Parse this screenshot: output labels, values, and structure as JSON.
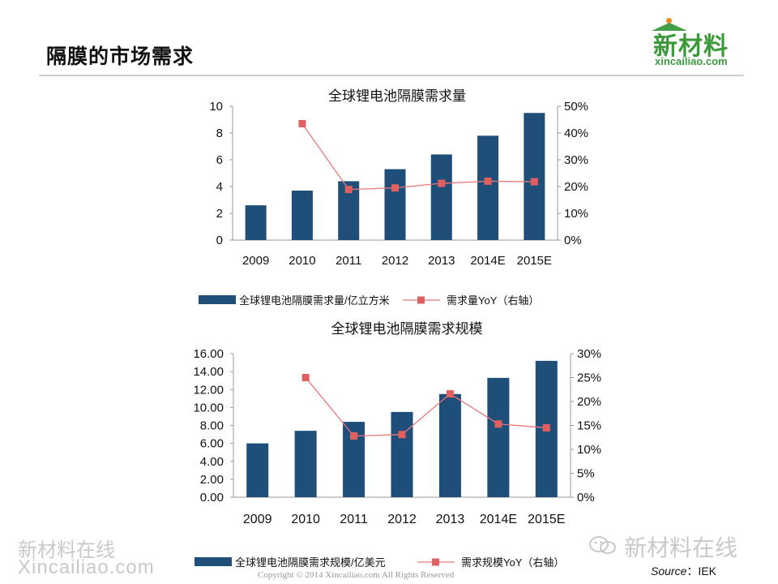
{
  "slide": {
    "title": "隔膜的市场需求",
    "logo_text": "新材料",
    "logo_domain": "xincailiao.com"
  },
  "watermark": {
    "left_line1": "新材料在线",
    "left_line2": "Xincailiao.com",
    "right_text": "新材料在线"
  },
  "footer": {
    "copyright": "Copyright © 2014   Xincailiao.com   All Rights Reserved",
    "source_label": "Source",
    "source_sep": "：",
    "source_value": "IEK"
  },
  "colors": {
    "bar": "#1f4e79",
    "line": "#e8777b",
    "marker": "#e06060",
    "axis": "#9a9a9a",
    "logo_green": "#3a9a3a"
  },
  "chart_data": [
    {
      "type": "bar",
      "title": "全球锂电池隔膜需求量",
      "categories": [
        "2009",
        "2010",
        "2011",
        "2012",
        "2013",
        "2014E",
        "2015E"
      ],
      "series": [
        {
          "name": "全球锂电池隔膜需求量/亿立方米",
          "kind": "bar",
          "axis": "left",
          "values": [
            2.6,
            3.7,
            4.4,
            5.3,
            6.4,
            7.8,
            9.5
          ]
        },
        {
          "name": "需求量YoY（右轴）",
          "kind": "line",
          "axis": "right",
          "values": [
            null,
            43.5,
            18.9,
            19.5,
            21.2,
            22.0,
            21.8
          ]
        }
      ],
      "ylim_left": [
        0,
        10
      ],
      "yticks_left": [
        "10",
        "8",
        "6",
        "4",
        "2",
        "0"
      ],
      "ylim_right": [
        0,
        50
      ],
      "yticks_right": [
        "50%",
        "40%",
        "30%",
        "20%",
        "10%",
        "0%"
      ],
      "legend": [
        "全球锂电池隔膜需求量/亿立方米",
        "需求量YoY（右轴）"
      ],
      "legend_position": "bottom"
    },
    {
      "type": "bar",
      "title": "全球锂电池隔膜需求规模",
      "categories": [
        "2009",
        "2010",
        "2011",
        "2012",
        "2013",
        "2014E",
        "2015E"
      ],
      "series": [
        {
          "name": "全球锂电池隔膜需求规模/亿美元",
          "kind": "bar",
          "axis": "left",
          "values": [
            6.0,
            7.4,
            8.4,
            9.5,
            11.5,
            13.3,
            15.2
          ]
        },
        {
          "name": "需求规模YoY（右轴）",
          "kind": "line",
          "axis": "right",
          "values": [
            null,
            25.0,
            12.8,
            13.1,
            21.6,
            15.3,
            14.5
          ]
        }
      ],
      "ylim_left": [
        0,
        16
      ],
      "yticks_left": [
        "16.00",
        "14.00",
        "12.00",
        "10.00",
        "8.00",
        "6.00",
        "4.00",
        "2.00",
        "0.00"
      ],
      "ylim_right": [
        0,
        30
      ],
      "yticks_right": [
        "30%",
        "25%",
        "20%",
        "15%",
        "10%",
        "5%",
        "0%"
      ],
      "legend": [
        "全球锂电池隔膜需求规模/亿美元",
        "需求规模YoY（右轴）"
      ],
      "legend_position": "bottom"
    }
  ]
}
